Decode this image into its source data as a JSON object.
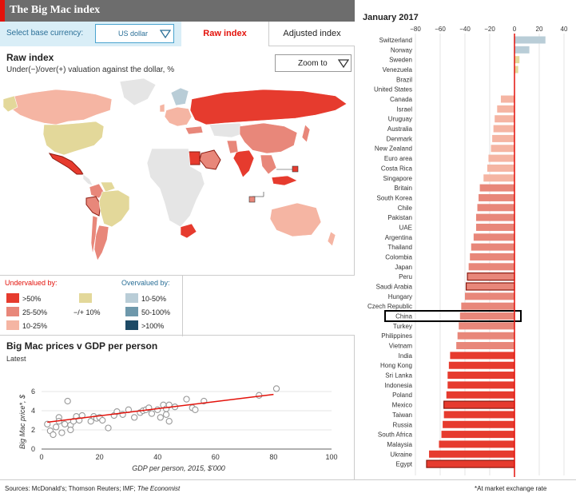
{
  "header": {
    "title": "The Big Mac index"
  },
  "controls": {
    "base_label": "Select base currency:",
    "base_value": "US dollar",
    "tab_raw": "Raw index",
    "tab_adjusted": "Adjusted index"
  },
  "map": {
    "title": "Raw index",
    "subtitle": "Under(−)/over(+) valuation against the dollar, %",
    "zoom_label": "Zoom to"
  },
  "legend": {
    "undervalued_head": "Undervalued by:",
    "overvalued_head": "Overvalued by:",
    "items": [
      {
        "label": ">50%",
        "color": "#e63b2e"
      },
      {
        "label": "25-50%",
        "color": "#e8877a"
      },
      {
        "label": "10-25%",
        "color": "#f5b5a3"
      },
      {
        "label": "−/+ 10%",
        "color": "#e3d89a"
      },
      {
        "label": "10-50%",
        "color": "#b9cdd7"
      },
      {
        "label": "50-100%",
        "color": "#6e98ab"
      },
      {
        "label": ">100%",
        "color": "#1d4a66"
      }
    ],
    "colors": {
      "accent": "#e3120b",
      "overvalued": "#2a6f97"
    }
  },
  "scatter": {
    "title": "Big Mac prices v GDP per person",
    "subtitle": "Latest"
  },
  "footer": {
    "sources_prefix": "Sources: McDonald's; Thomson Reuters; IMF; ",
    "sources_em": "The Economist",
    "note": "*At market exchange rate"
  },
  "chart_data": [
    {
      "type": "bar",
      "title": "January 2017",
      "xlim": [
        -80,
        40
      ],
      "xticks": [
        -80,
        -60,
        -40,
        -20,
        0,
        20,
        40
      ],
      "xtick_labels": [
        "−80",
        "−60",
        "−40",
        "−20",
        "0",
        "20",
        "40"
      ],
      "highlighted": "China",
      "categories": [
        "Switzerland",
        "Norway",
        "Sweden",
        "Venezuela",
        "Brazil",
        "United States",
        "Canada",
        "Israel",
        "Uruguay",
        "Australia",
        "Denmark",
        "New Zealand",
        "Euro area",
        "Costa Rica",
        "Singapore",
        "Britain",
        "South Korea",
        "Chile",
        "Pakistan",
        "UAE",
        "Argentina",
        "Thailand",
        "Colombia",
        "Japan",
        "Peru",
        "Saudi Arabia",
        "Hungary",
        "Czech Republic",
        "China",
        "Turkey",
        "Philippines",
        "Vietnam",
        "India",
        "Hong Kong",
        "Sri Lanka",
        "Indonesia",
        "Poland",
        "Mexico",
        "Taiwan",
        "Russia",
        "South Africa",
        "Malaysia",
        "Ukraine",
        "Egypt"
      ],
      "values": [
        25,
        12,
        4,
        3,
        0,
        0,
        -11,
        -14,
        -16,
        -17,
        -18,
        -19,
        -21,
        -22,
        -25,
        -28,
        -29,
        -30,
        -31,
        -31,
        -33,
        -35,
        -36,
        -37,
        -38,
        -39,
        -40,
        -43,
        -44,
        -45,
        -46,
        -47,
        -52,
        -53,
        -54,
        -54,
        -55,
        -57,
        -57,
        -58,
        -59,
        -61,
        -69,
        -71
      ],
      "outlined": [
        "Peru",
        "Saudi Arabia",
        "Mexico",
        "Egypt"
      ]
    },
    {
      "type": "scatter",
      "title": "Big Mac prices v GDP per person",
      "xlabel": "GDP per person, 2015, $'000",
      "ylabel": "Big Mac price*, $",
      "xlim": [
        0,
        100
      ],
      "ylim": [
        0,
        7
      ],
      "xticks": [
        0,
        20,
        40,
        60,
        80,
        100
      ],
      "yticks": [
        0,
        2,
        4,
        6
      ],
      "points": [
        {
          "x": 2,
          "y": 2.6
        },
        {
          "x": 3,
          "y": 1.9
        },
        {
          "x": 4,
          "y": 1.5
        },
        {
          "x": 5,
          "y": 2.3
        },
        {
          "x": 6,
          "y": 3.3
        },
        {
          "x": 6,
          "y": 2.9
        },
        {
          "x": 7,
          "y": 1.7
        },
        {
          "x": 8,
          "y": 2.6
        },
        {
          "x": 9,
          "y": 5.0
        },
        {
          "x": 10,
          "y": 2.5
        },
        {
          "x": 10,
          "y": 2.0
        },
        {
          "x": 11,
          "y": 2.9
        },
        {
          "x": 12,
          "y": 3.4
        },
        {
          "x": 13,
          "y": 3.0
        },
        {
          "x": 14,
          "y": 3.5
        },
        {
          "x": 17,
          "y": 2.9
        },
        {
          "x": 18,
          "y": 3.4
        },
        {
          "x": 19,
          "y": 3.2
        },
        {
          "x": 20,
          "y": 3.3
        },
        {
          "x": 21,
          "y": 3.0
        },
        {
          "x": 23,
          "y": 2.2
        },
        {
          "x": 25,
          "y": 3.5
        },
        {
          "x": 26,
          "y": 3.9
        },
        {
          "x": 28,
          "y": 3.6
        },
        {
          "x": 30,
          "y": 4.1
        },
        {
          "x": 32,
          "y": 3.3
        },
        {
          "x": 34,
          "y": 3.8
        },
        {
          "x": 35,
          "y": 4.0
        },
        {
          "x": 36,
          "y": 4.1
        },
        {
          "x": 37,
          "y": 4.3
        },
        {
          "x": 38,
          "y": 3.7
        },
        {
          "x": 40,
          "y": 4.1
        },
        {
          "x": 41,
          "y": 3.3
        },
        {
          "x": 42,
          "y": 4.6
        },
        {
          "x": 43,
          "y": 4.2
        },
        {
          "x": 43,
          "y": 3.6
        },
        {
          "x": 44,
          "y": 4.6
        },
        {
          "x": 44,
          "y": 2.9
        },
        {
          "x": 46,
          "y": 4.4
        },
        {
          "x": 50,
          "y": 5.2
        },
        {
          "x": 52,
          "y": 4.3
        },
        {
          "x": 53,
          "y": 4.1
        },
        {
          "x": 56,
          "y": 5.0
        },
        {
          "x": 75,
          "y": 5.6
        },
        {
          "x": 81,
          "y": 6.3
        }
      ],
      "trendline": {
        "x": [
          2,
          80
        ],
        "y": [
          2.8,
          5.7
        ]
      }
    }
  ]
}
